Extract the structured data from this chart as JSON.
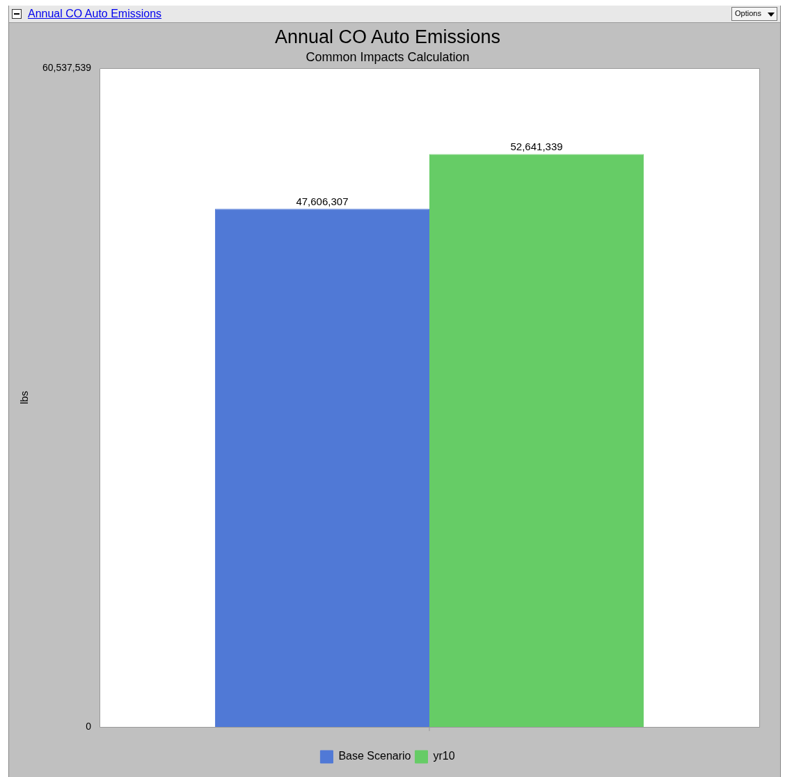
{
  "chart_data": {
    "type": "bar",
    "title": "Annual CO Auto Emissions",
    "subtitle": "Common Impacts Calculation",
    "ylabel": "lbs",
    "annotations": [
      "Annual CO Auto Emissions",
      "Options"
    ],
    "categories": [
      null
    ],
    "series": [
      {
        "name": "Base Scenario",
        "color": "#5079d6",
        "values": [
          47606307
        ],
        "value_labels": [
          "47,606,307"
        ]
      },
      {
        "name": "yr10",
        "color": "#66cc66",
        "values": [
          52641339
        ],
        "value_labels": [
          "52,641,339"
        ]
      }
    ],
    "ylim": [
      0,
      60537539
    ],
    "yticks": [
      0,
      {
        "value": 60537539,
        "label": "60,537,539"
      }
    ],
    "grid": false,
    "legend": "bottom"
  }
}
